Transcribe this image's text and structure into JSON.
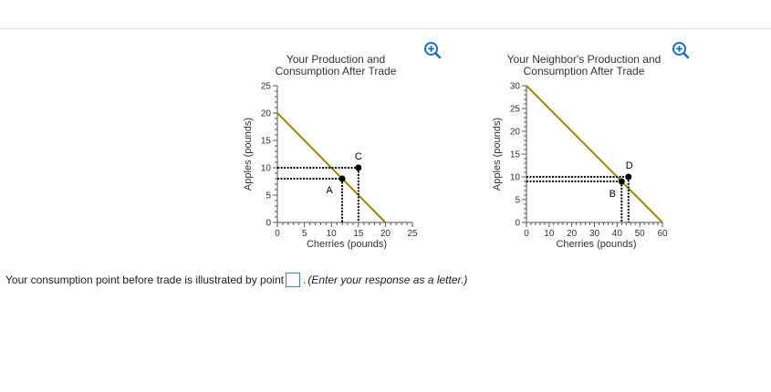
{
  "icons": {
    "zoom": "zoom-in-icon"
  },
  "colors": {
    "ppf_line": "#9a8a00",
    "guide": "#000000",
    "zoom": "#1a6fc1",
    "answer_border": "#4a78c8"
  },
  "chart_data": [
    {
      "type": "line",
      "title_line1": "Your Production and",
      "title_line2": "Consumption After Trade",
      "xlabel": "Cherries (pounds)",
      "ylabel": "Apples (pounds)",
      "xlim": [
        0,
        25
      ],
      "ylim": [
        0,
        25
      ],
      "x_ticks": [
        0,
        5,
        10,
        15,
        20,
        25
      ],
      "y_ticks": [
        0,
        5,
        10,
        15,
        20,
        25
      ],
      "series": [
        {
          "x": [
            0,
            20
          ],
          "y": [
            20,
            0
          ]
        }
      ],
      "points": [
        {
          "label": "A",
          "x": 12,
          "y": 8
        },
        {
          "label": "C",
          "x": 15,
          "y": 10
        }
      ]
    },
    {
      "type": "line",
      "title_line1": "Your Neighbor's Production and",
      "title_line2": "Consumption After Trade",
      "xlabel": "Cherries (pounds)",
      "ylabel": "Apples (pounds)",
      "xlim": [
        0,
        60
      ],
      "ylim": [
        0,
        30
      ],
      "x_ticks": [
        0,
        10,
        20,
        30,
        40,
        50,
        60
      ],
      "y_ticks": [
        0,
        5,
        10,
        15,
        20,
        25,
        30
      ],
      "series": [
        {
          "x": [
            0,
            60
          ],
          "y": [
            30,
            0
          ]
        }
      ],
      "points": [
        {
          "label": "B",
          "x": 42,
          "y": 9
        },
        {
          "label": "D",
          "x": 45,
          "y": 10
        }
      ]
    }
  ],
  "question": {
    "prompt": "Your consumption point before trade is illustrated by point",
    "answer_value": "",
    "hint": "(Enter your response as a letter.)"
  }
}
